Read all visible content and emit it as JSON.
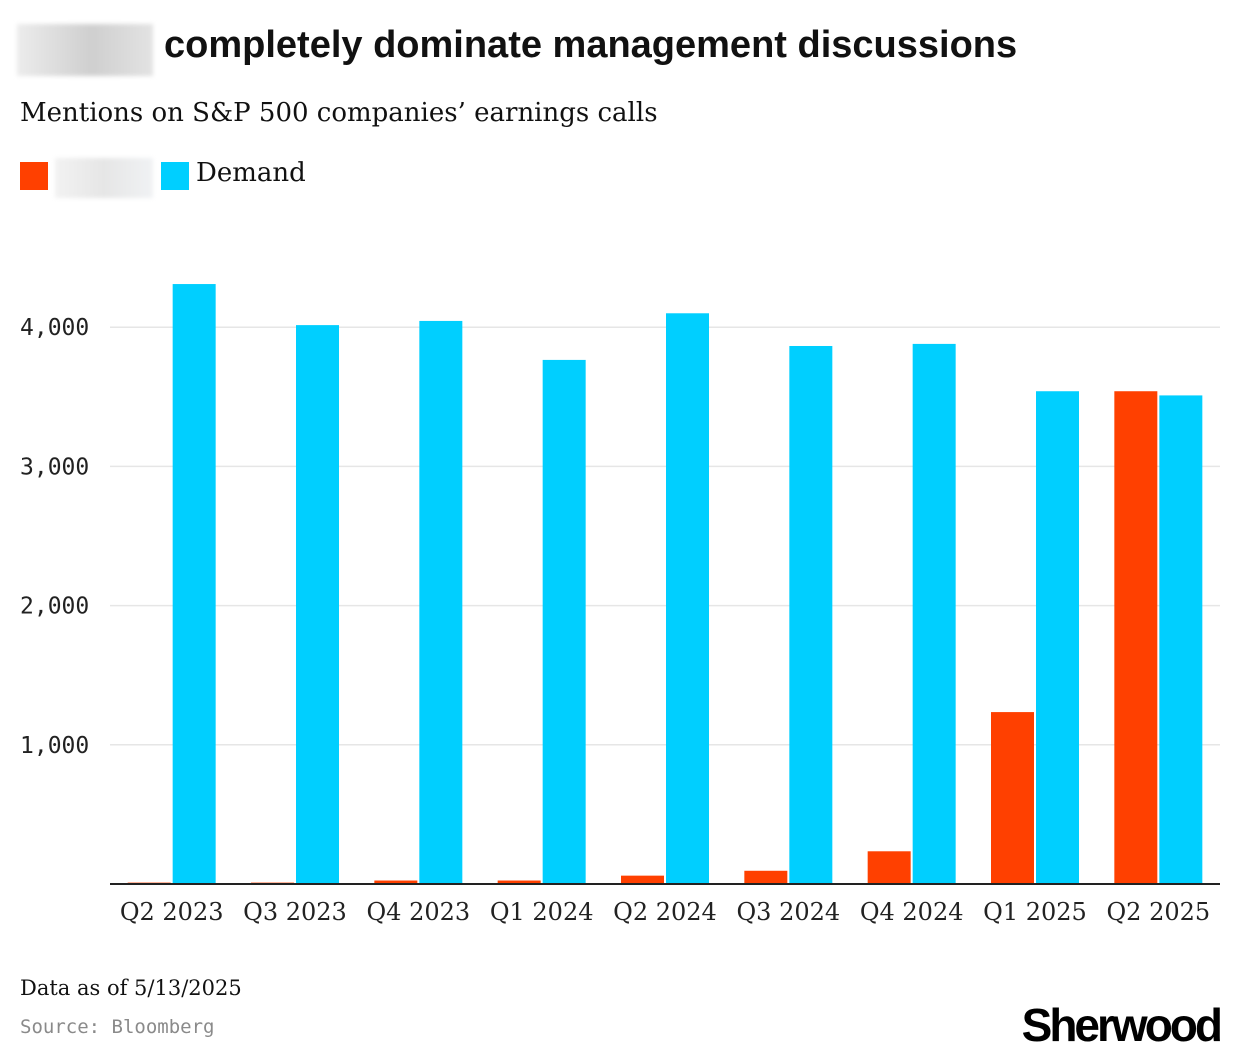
{
  "header": {
    "title": "completely dominate management discussions",
    "subtitle": "Mentions on S&P 500 companies’ earnings calls"
  },
  "legend": {
    "demand_label": "Demand"
  },
  "footer": {
    "note": "Data as of 5/13/2025",
    "source": "Source: Bloomberg",
    "brand": "Sherwood"
  },
  "colors": {
    "series_redacted": "#ff4000",
    "series_demand": "#00cfff",
    "grid": "#e6e6e6",
    "axis": "#222222"
  },
  "chart_data": {
    "type": "bar",
    "title": "completely dominate management discussions",
    "subtitle": "Mentions on S&P 500 companies’ earnings calls",
    "xlabel": "",
    "ylabel": "",
    "categories": [
      "Q2 2023",
      "Q3 2023",
      "Q4 2023",
      "Q1 2024",
      "Q2 2024",
      "Q3 2024",
      "Q4 2024",
      "Q1 2025",
      "Q2 2025"
    ],
    "series": [
      {
        "name": "",
        "color": "#ff4000",
        "values": [
          10,
          10,
          25,
          25,
          60,
          95,
          235,
          1235,
          3540
        ]
      },
      {
        "name": "Demand",
        "color": "#00cfff",
        "values": [
          4310,
          4015,
          4045,
          3765,
          4100,
          3865,
          3880,
          3540,
          3510
        ]
      }
    ],
    "ylim": [
      0,
      4500
    ],
    "yticks": [
      1000,
      2000,
      3000,
      4000
    ],
    "ytick_labels": [
      "1,000",
      "2,000",
      "3,000",
      "4,000"
    ],
    "grid": true,
    "legend": "top-left"
  }
}
